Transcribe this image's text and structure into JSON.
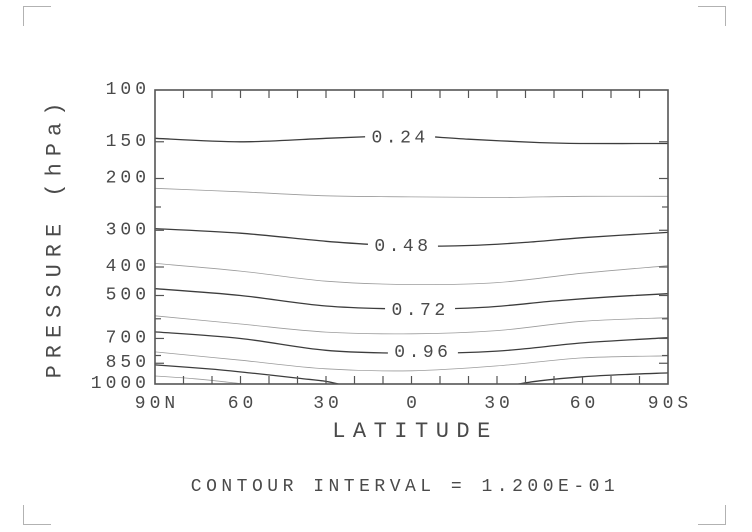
{
  "page": {
    "background": "#ffffff",
    "colors": {
      "frame": "#555555",
      "solid_contour": "#3d3d3d",
      "thin_contour": "#9b9b9b",
      "text": "#4a4a4a",
      "crop_mark": "#b2b2b2"
    }
  },
  "chart_data": {
    "type": "contour",
    "title": "",
    "xlabel": "LATITUDE",
    "ylabel": "PRESSURE (hPa)",
    "note": "CONTOUR INTERVAL = 1.200E-01",
    "contour_interval": 0.12,
    "x_axis": {
      "unit": "degrees latitude",
      "left_end": "90N",
      "right_end": "90S",
      "major_ticks": [
        {
          "lat": 90,
          "label": "90N"
        },
        {
          "lat": 60,
          "label": "60"
        },
        {
          "lat": 30,
          "label": "30"
        },
        {
          "lat": 0,
          "label": "0"
        },
        {
          "lat": -30,
          "label": "30"
        },
        {
          "lat": -60,
          "label": "60"
        },
        {
          "lat": -90,
          "label": "90S"
        }
      ],
      "minor_tick_step_deg": 10
    },
    "y_axis": {
      "scale": "log",
      "min": 100,
      "max": 1000,
      "unit": "hPa",
      "labeled_ticks": [
        100,
        150,
        200,
        300,
        400,
        500,
        700,
        850,
        1000
      ],
      "unlabeled_ticks": [
        250,
        600,
        800
      ]
    },
    "contours": [
      {
        "level": 0.24,
        "style": "solid",
        "label": "0.24",
        "label_at": {
          "lat": 4,
          "hpa": 144
        },
        "points": [
          [
            90,
            146
          ],
          [
            60,
            150
          ],
          [
            30,
            146
          ],
          [
            10,
            143.5
          ],
          [
            0,
            143
          ],
          [
            -20,
            147
          ],
          [
            -45,
            151
          ],
          [
            -60,
            152
          ],
          [
            -90,
            152
          ]
        ]
      },
      {
        "level": 0.36,
        "style": "thin",
        "label": null,
        "points": [
          [
            90,
            216
          ],
          [
            60,
            222
          ],
          [
            30,
            229
          ],
          [
            0,
            231
          ],
          [
            -30,
            232
          ],
          [
            -60,
            230
          ],
          [
            -90,
            230
          ]
        ]
      },
      {
        "level": 0.48,
        "style": "solid",
        "label": "0.48",
        "label_at": {
          "lat": 3,
          "hpa": 337
        },
        "points": [
          [
            90,
            296
          ],
          [
            60,
            307
          ],
          [
            30,
            327
          ],
          [
            10,
            337
          ],
          [
            0,
            340
          ],
          [
            -20,
            338
          ],
          [
            -40,
            330
          ],
          [
            -60,
            318
          ],
          [
            -90,
            305
          ]
        ]
      },
      {
        "level": 0.6,
        "style": "thin",
        "label": null,
        "points": [
          [
            90,
            389
          ],
          [
            60,
            413
          ],
          [
            30,
            447
          ],
          [
            0,
            459
          ],
          [
            -30,
            452
          ],
          [
            -60,
            420
          ],
          [
            -90,
            396
          ]
        ]
      },
      {
        "level": 0.72,
        "style": "solid",
        "label": "0.72",
        "label_at": {
          "lat": -3,
          "hpa": 556
        },
        "points": [
          [
            90,
            474
          ],
          [
            60,
            500
          ],
          [
            30,
            543
          ],
          [
            0,
            556
          ],
          [
            -25,
            549
          ],
          [
            -50,
            522
          ],
          [
            -70,
            505
          ],
          [
            -90,
            493
          ]
        ]
      },
      {
        "level": 0.84,
        "style": "thin",
        "label": null,
        "points": [
          [
            90,
            586
          ],
          [
            60,
            625
          ],
          [
            30,
            666
          ],
          [
            0,
            675
          ],
          [
            -30,
            658
          ],
          [
            -60,
            612
          ],
          [
            -90,
            595
          ]
        ]
      },
      {
        "level": 0.96,
        "style": "solid",
        "label": "0.96",
        "label_at": {
          "lat": -4,
          "hpa": 775
        },
        "points": [
          [
            90,
            665
          ],
          [
            60,
            700
          ],
          [
            30,
            768
          ],
          [
            0,
            786
          ],
          [
            -30,
            773
          ],
          [
            -60,
            725
          ],
          [
            -90,
            696
          ]
        ]
      },
      {
        "level": 1.08,
        "style": "thin",
        "label": null,
        "points": [
          [
            90,
            778
          ],
          [
            60,
            830
          ],
          [
            30,
            888
          ],
          [
            0,
            902
          ],
          [
            -30,
            868
          ],
          [
            -60,
            815
          ],
          [
            -90,
            802
          ]
        ]
      },
      {
        "level": 1.2,
        "style": "solid",
        "label": null,
        "points": [
          [
            90,
            861
          ],
          [
            70,
            890
          ],
          [
            55,
            920
          ],
          [
            40,
            955
          ],
          [
            30,
            980
          ],
          [
            24,
            1010
          ]
        ]
      },
      {
        "level": 1.2,
        "style": "solid",
        "label": null,
        "points": [
          [
            -35,
            1010
          ],
          [
            -45,
            975
          ],
          [
            -60,
            945
          ],
          [
            -75,
            928
          ],
          [
            -90,
            917
          ]
        ]
      },
      {
        "level": 1.32,
        "style": "thin",
        "label": null,
        "points": [
          [
            90,
            939
          ],
          [
            76,
            960
          ],
          [
            66,
            982
          ],
          [
            56,
            1008
          ]
        ]
      }
    ]
  }
}
